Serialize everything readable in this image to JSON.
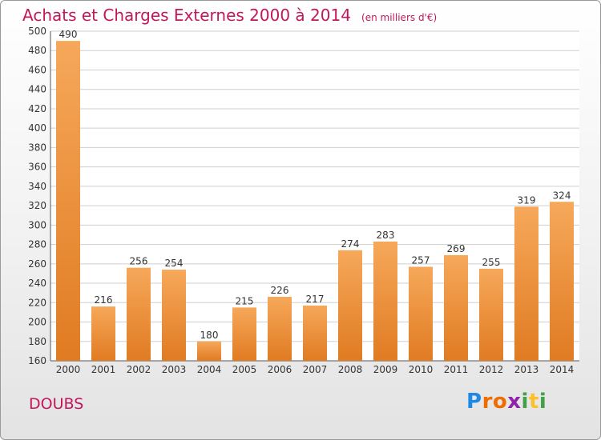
{
  "header": {
    "title": "Achats et Charges Externes 2000 à 2014",
    "unit": "(en milliers d'€)"
  },
  "footer": {
    "region": "DOUBS",
    "logo": [
      "P",
      "r",
      "o",
      "x",
      "i",
      "t",
      "i"
    ],
    "logo_colors": [
      "#1e88e5",
      "#ef6c00",
      "#ef6c00",
      "#8e24aa",
      "#43a047",
      "#fbc02d",
      "#43a047"
    ]
  },
  "colors": {
    "title": "#c2185b",
    "bar_light": "#f6a85a",
    "bar_dark": "#e07b22",
    "grid": "#cfcfcf"
  },
  "chart_data": {
    "type": "bar",
    "title": "Achats et Charges Externes 2000 à 2014",
    "subtitle": "(en milliers d'€)",
    "xlabel": "",
    "ylabel": "",
    "categories": [
      "2000",
      "2001",
      "2002",
      "2003",
      "2004",
      "2005",
      "2006",
      "2007",
      "2008",
      "2009",
      "2010",
      "2011",
      "2012",
      "2013",
      "2014"
    ],
    "values": [
      490,
      216,
      256,
      254,
      180,
      215,
      226,
      217,
      274,
      283,
      257,
      269,
      255,
      319,
      324
    ],
    "data_labels": [
      "490",
      "216",
      "256",
      "254",
      "180",
      "215",
      "226",
      "217",
      "274",
      "283",
      "257",
      "269",
      "255",
      "319",
      "324"
    ],
    "yticks": [
      160,
      180,
      200,
      220,
      240,
      260,
      280,
      300,
      320,
      340,
      360,
      380,
      400,
      420,
      440,
      460,
      480,
      500
    ],
    "ylim": [
      160,
      500
    ],
    "grid": true,
    "legend": "none"
  }
}
